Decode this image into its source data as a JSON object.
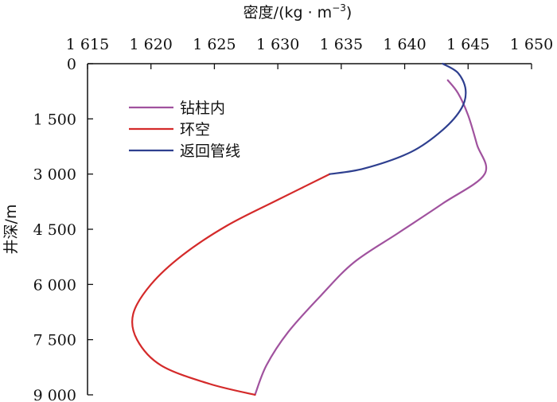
{
  "chart_data": {
    "type": "line",
    "title": "",
    "xlabel": "密度/(kg · m",
    "xlabel_sup": "−3",
    "xlabel_suffix": ")",
    "ylabel": "井深/m",
    "xlim": [
      1615,
      1650
    ],
    "ylim": [
      0,
      9000
    ],
    "y_inverted": true,
    "x_axis_position": "top",
    "x_ticks": [
      1615,
      1620,
      1625,
      1630,
      1635,
      1640,
      1645,
      1650
    ],
    "x_tick_labels": [
      "1 615",
      "1 620",
      "1 625",
      "1 630",
      "1 635",
      "1 640",
      "1 645",
      "1 650"
    ],
    "y_ticks": [
      0,
      1500,
      3000,
      4500,
      6000,
      7500,
      9000
    ],
    "y_tick_labels": [
      "0",
      "1 500",
      "3 000",
      "4 500",
      "6 000",
      "7 500",
      "9 000"
    ],
    "grid": false,
    "legend_position": "upper-left",
    "series": [
      {
        "name": "钻柱内",
        "color": "#a0529e",
        "points": [
          [
            1643.4,
            450
          ],
          [
            1644.2,
            800
          ],
          [
            1645.0,
            1400
          ],
          [
            1645.7,
            2200
          ],
          [
            1646.3,
            3000
          ],
          [
            1643.0,
            3800
          ],
          [
            1639.5,
            4600
          ],
          [
            1636.0,
            5400
          ],
          [
            1633.4,
            6300
          ],
          [
            1630.8,
            7300
          ],
          [
            1629.1,
            8200
          ],
          [
            1628.2,
            9000
          ]
        ]
      },
      {
        "name": "环空",
        "color": "#d42a2a",
        "points": [
          [
            1634.1,
            3000
          ],
          [
            1630.0,
            3700
          ],
          [
            1626.0,
            4400
          ],
          [
            1622.5,
            5200
          ],
          [
            1620.0,
            6000
          ],
          [
            1618.6,
            6800
          ],
          [
            1618.9,
            7500
          ],
          [
            1620.8,
            8200
          ],
          [
            1624.6,
            8700
          ],
          [
            1628.2,
            9000
          ]
        ]
      },
      {
        "name": "返回管线",
        "color": "#2e3f8f",
        "points": [
          [
            1643.0,
            0
          ],
          [
            1644.2,
            250
          ],
          [
            1644.8,
            700
          ],
          [
            1644.5,
            1200
          ],
          [
            1643.0,
            1800
          ],
          [
            1640.5,
            2400
          ],
          [
            1636.8,
            2850
          ],
          [
            1634.1,
            3000
          ]
        ]
      }
    ]
  }
}
